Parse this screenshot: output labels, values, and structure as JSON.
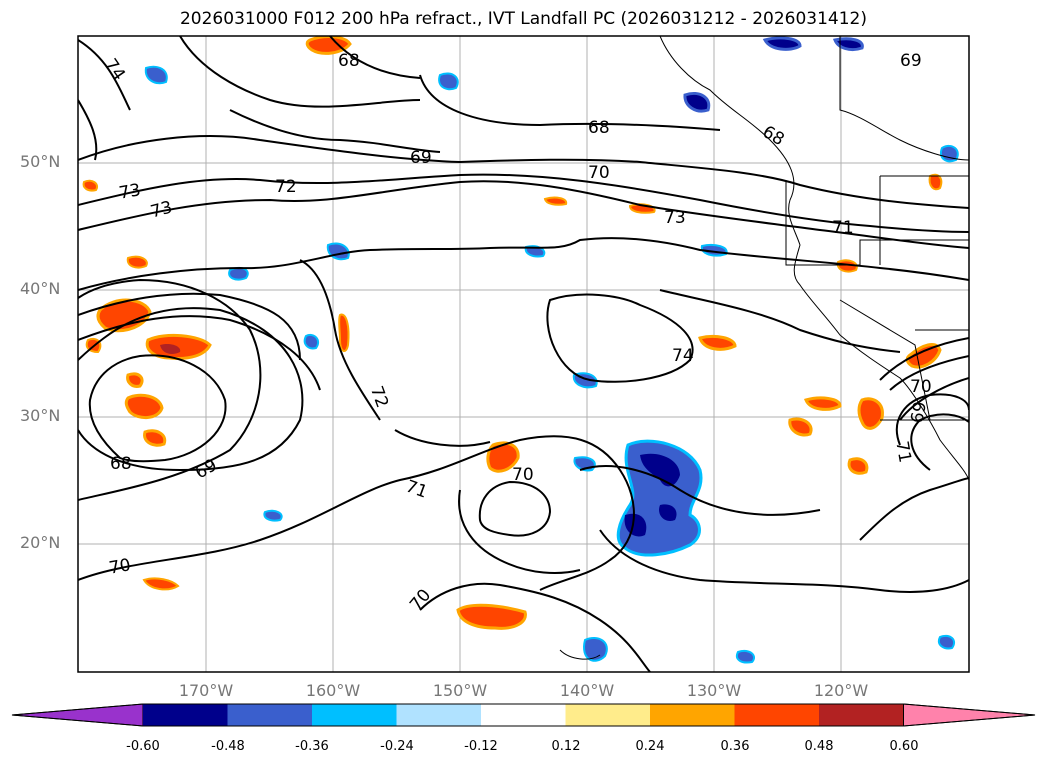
{
  "title": "2026031000 F012 200 hPa refract., IVT Landfall PC (2026031212 - 2026031412)",
  "lat_labels": [
    "50°N",
    "40°N",
    "30°N",
    "20°N"
  ],
  "lon_labels": [
    "170°W",
    "160°W",
    "150°W",
    "140°W",
    "130°W",
    "120°W"
  ],
  "contour_labels": {
    "c74a": "74",
    "c68a": "68",
    "c69a": "69",
    "c70a": "70",
    "c68b": "68",
    "c69b": "69",
    "c68c": "68",
    "c73a": "73",
    "c73b": "73",
    "c72a": "72",
    "c73c": "73",
    "c71a": "71",
    "c74b": "74",
    "c72b": "72",
    "c68d": "68",
    "c69c": "69",
    "c71b": "71",
    "c70b": "70",
    "c70c": "70",
    "c70d": "70",
    "c69d": "69",
    "c71c": "71"
  },
  "colorbar": {
    "ticks": [
      "-0.60",
      "-0.48",
      "-0.36",
      "-0.24",
      "-0.12",
      "0.12",
      "0.24",
      "0.36",
      "0.48",
      "0.60"
    ],
    "colors": [
      "#9932cc",
      "#00008b",
      "#3a5fcd",
      "#00bfff",
      "#b0e2ff",
      "#ffffff",
      "#ffec8b",
      "#ffa500",
      "#ff4500",
      "#b22222",
      "#ff82ab"
    ]
  }
}
